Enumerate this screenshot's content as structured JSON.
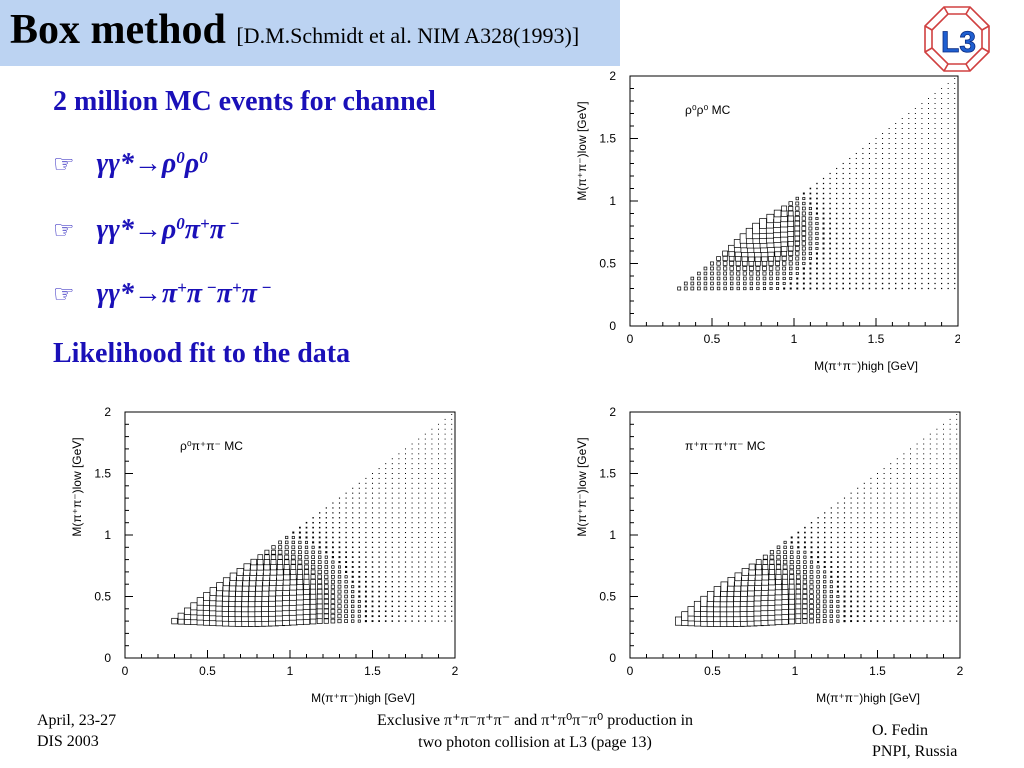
{
  "header": {
    "title": "Box method",
    "reference": "[D.M.Schmidt et al. NIM A328(1993)]"
  },
  "logo": {
    "text": "L3"
  },
  "bullets": {
    "intro": "2 million MC events for channel",
    "channels": [
      [
        "γγ*→ρ",
        "0",
        "ρ",
        "0"
      ],
      [
        "γγ*→ρ",
        "0",
        "π",
        "+",
        "π",
        " −"
      ],
      [
        "γγ*→π",
        "+",
        "π",
        " −",
        "π",
        "+",
        "π",
        " −"
      ]
    ],
    "conclusion": "Likelihood fit to the data"
  },
  "footer": {
    "date": "April, 23-27",
    "conference": "DIS 2003",
    "center_line1": "Exclusive    π⁺π⁻π⁺π⁻ and π⁺π⁰π⁻π⁰ production in",
    "center_line2": "two photon collision at L3  (page 13)",
    "author": "O. Fedin",
    "institute": "PNPI, Russia"
  },
  "colors": {
    "title_bar": "#bcd3f2",
    "bullet_text": "#1a10b8",
    "logo": "#d04040",
    "logo_letter": "#1f5fd0"
  },
  "chart_data": [
    {
      "type": "scatter",
      "title": "ρ⁰ρ⁰ MC",
      "xlabel": "M(π⁺π⁻)high [GeV]",
      "ylabel": "M(π⁺π⁻)low [GeV]",
      "xlim": [
        0,
        2
      ],
      "ylim": [
        0,
        2
      ],
      "xticks": [
        "0",
        "0.5",
        "1",
        "1.5",
        "2"
      ],
      "yticks": [
        "0",
        "0.5",
        "1",
        "1.5",
        "2"
      ],
      "peak": [
        0.77,
        0.77
      ],
      "peak_width": 0.18
    },
    {
      "type": "scatter",
      "title": "ρ⁰π⁺π⁻ MC",
      "xlabel": "M(π⁺π⁻)high [GeV]",
      "ylabel": "M(π⁺π⁻)low [GeV]",
      "xlim": [
        0,
        2
      ],
      "ylim": [
        0,
        2
      ],
      "xticks": [
        "0",
        "0.5",
        "1",
        "1.5",
        "2"
      ],
      "yticks": [
        "0",
        "0.5",
        "1",
        "1.5",
        "2"
      ],
      "peak": [
        0.77,
        0.4
      ],
      "peak_width": 0.3
    },
    {
      "type": "scatter",
      "title": "π⁺π⁻π⁺π⁻ MC",
      "xlabel": "M(π⁺π⁻)high [GeV]",
      "ylabel": "M(π⁺π⁻)low [GeV]",
      "xlim": [
        0,
        2
      ],
      "ylim": [
        0,
        2
      ],
      "xticks": [
        "0",
        "0.5",
        "1",
        "1.5",
        "2"
      ],
      "yticks": [
        "0",
        "0.5",
        "1",
        "1.5",
        "2"
      ],
      "peak": [
        0.6,
        0.4
      ],
      "peak_width": 0.3
    }
  ]
}
